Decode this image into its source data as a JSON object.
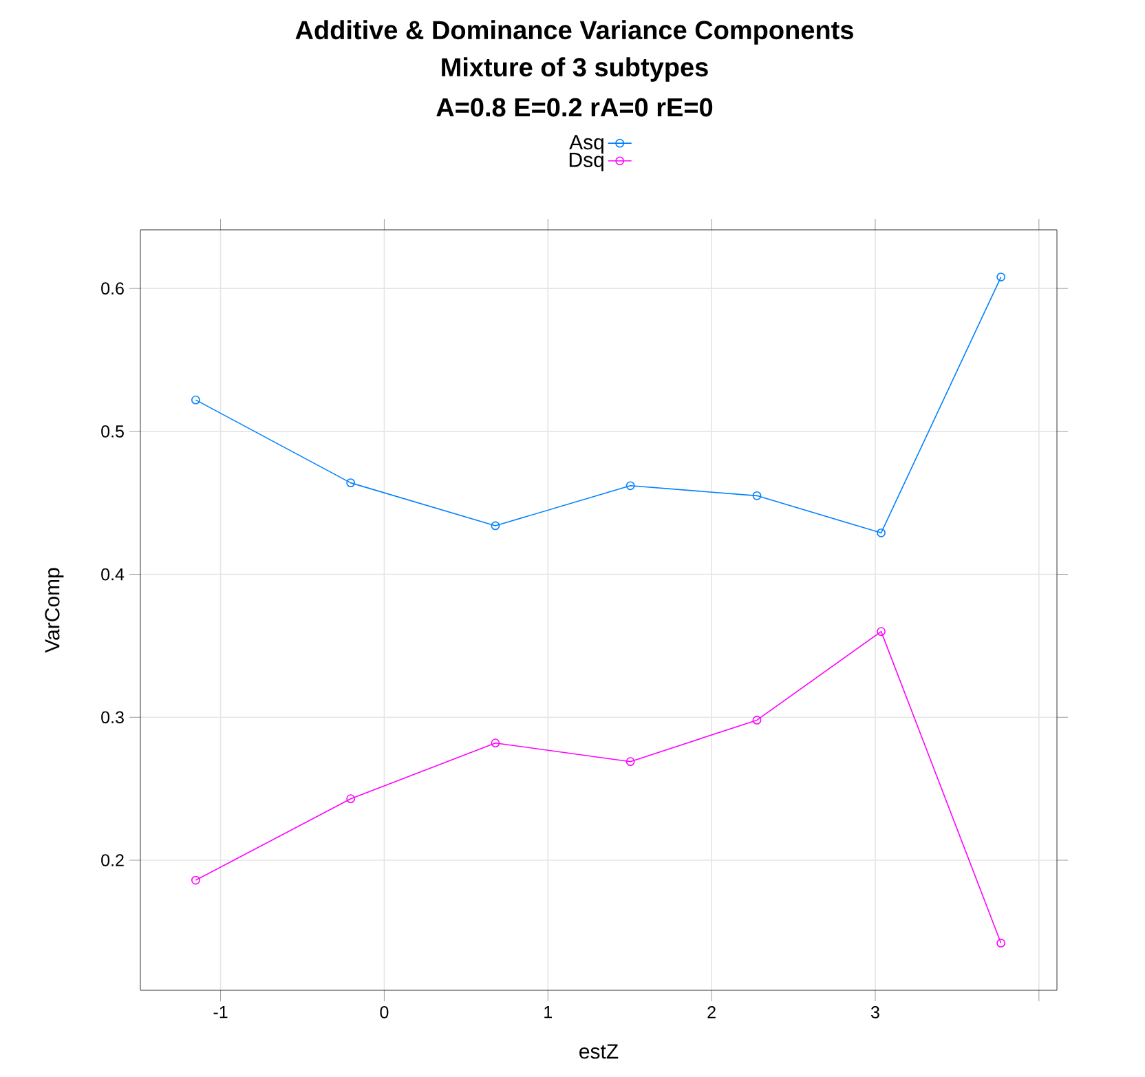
{
  "chart_data": {
    "type": "line",
    "title": "Additive & Dominance Variance Components",
    "subtitle": "Mixture of  3  subtypes",
    "annotations": [
      "A=0.8 E=0.2 rA=0 rE=0"
    ],
    "xlabel": "estZ",
    "ylabel": "VarComp",
    "x": [
      -1.152,
      -0.205,
      0.679,
      1.504,
      2.277,
      3.036,
      3.768
    ],
    "series": [
      {
        "name": "Asq",
        "color": "#0080ff",
        "values": [
          0.522,
          0.464,
          0.434,
          0.462,
          0.455,
          0.429,
          0.608
        ]
      },
      {
        "name": "Dsq",
        "color": "#ff00ff",
        "values": [
          0.186,
          0.243,
          0.282,
          0.269,
          0.298,
          0.36,
          0.142
        ]
      }
    ],
    "xlim": [
      -1.49,
      4.11
    ],
    "ylim": [
      0.109,
      0.641
    ],
    "xticks": [
      -1,
      0,
      1,
      2,
      3,
      {
        "value": 4,
        "label": null
      }
    ],
    "yticks": [
      0.2,
      0.3,
      0.4,
      0.5,
      0.6
    ],
    "grid": true,
    "legend": "top",
    "marker": "circle",
    "line_style": "solid"
  }
}
